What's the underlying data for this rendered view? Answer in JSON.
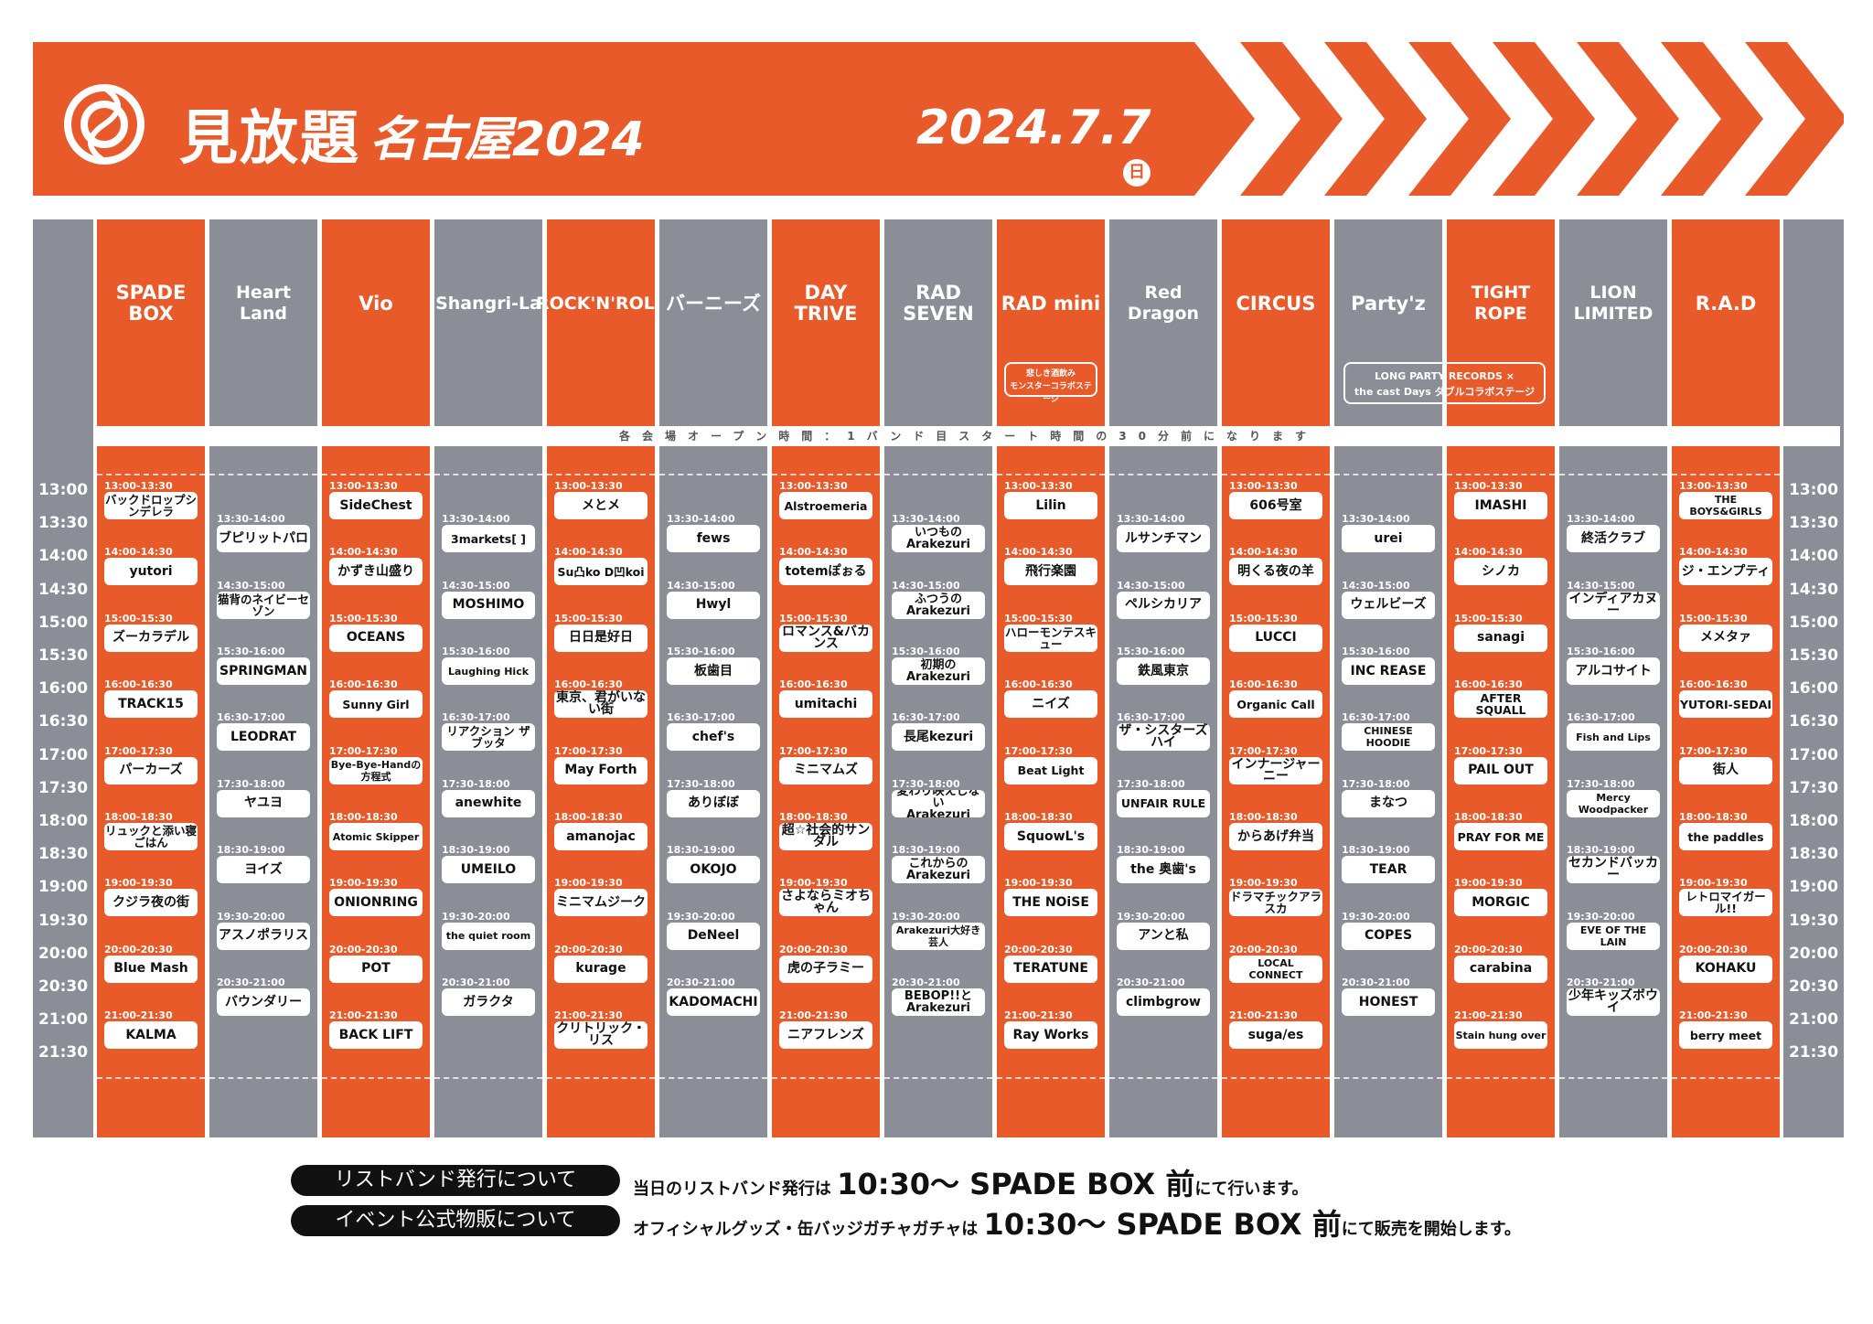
{
  "header": {
    "logo_main": "見放題",
    "logo_sub": "名古屋2024",
    "date": "2024.7.7",
    "weekday": "日"
  },
  "colors": {
    "orange": "#e85a2a",
    "gray": "#8b8d97"
  },
  "notice": "各会場オープン時間：1バンド目スタート時間の30分前になります",
  "time_labels": [
    "13:00",
    "13:30",
    "14:00",
    "14:30",
    "15:00",
    "15:30",
    "16:00",
    "16:30",
    "17:00",
    "17:30",
    "18:00",
    "18:30",
    "19:00",
    "19:30",
    "20:00",
    "20:30",
    "21:00",
    "21:30"
  ],
  "venues": [
    {
      "name": "SPADE BOX",
      "color": "orange",
      "offset": 0,
      "acts": [
        {
          "time": "13:00-13:30",
          "band": "バックドロップシンデレラ"
        },
        {
          "time": "14:00-14:30",
          "band": "yutori"
        },
        {
          "time": "15:00-15:30",
          "band": "ズーカラデル"
        },
        {
          "time": "16:00-16:30",
          "band": "TRACK15"
        },
        {
          "time": "17:00-17:30",
          "band": "パーカーズ"
        },
        {
          "time": "18:00-18:30",
          "band": "リュックと添い寝ごはん"
        },
        {
          "time": "19:00-19:30",
          "band": "クジラ夜の街"
        },
        {
          "time": "20:00-20:30",
          "band": "Blue Mash"
        },
        {
          "time": "21:00-21:30",
          "band": "KALMA"
        }
      ]
    },
    {
      "name": "Heart\nLand",
      "color": "gray",
      "offset": 1,
      "acts": [
        {
          "time": "13:30-14:00",
          "band": "ブピリットパロ"
        },
        {
          "time": "14:30-15:00",
          "band": "猫背のネイビーセゾン"
        },
        {
          "time": "15:30-16:00",
          "band": "SPRINGMAN"
        },
        {
          "time": "16:30-17:00",
          "band": "LEODRAT"
        },
        {
          "time": "17:30-18:00",
          "band": "ヤユヨ"
        },
        {
          "time": "18:30-19:00",
          "band": "ヨイズ"
        },
        {
          "time": "19:30-20:00",
          "band": "アスノポラリス"
        },
        {
          "time": "20:30-21:00",
          "band": "バウンダリー"
        }
      ]
    },
    {
      "name": "Vio",
      "color": "orange",
      "offset": 0,
      "acts": [
        {
          "time": "13:00-13:30",
          "band": "SideChest"
        },
        {
          "time": "14:00-14:30",
          "band": "かずき山盛り"
        },
        {
          "time": "15:00-15:30",
          "band": "OCEANS"
        },
        {
          "time": "16:00-16:30",
          "band": "Sunny Girl"
        },
        {
          "time": "17:00-17:30",
          "band": "Bye-Bye-Handの方程式"
        },
        {
          "time": "18:00-18:30",
          "band": "Atomic Skipper"
        },
        {
          "time": "19:00-19:30",
          "band": "ONIONRING"
        },
        {
          "time": "20:00-20:30",
          "band": "POT"
        },
        {
          "time": "21:00-21:30",
          "band": "BACK LIFT"
        }
      ]
    },
    {
      "name": "Shangri-La",
      "color": "gray",
      "offset": 1,
      "acts": [
        {
          "time": "13:30-14:00",
          "band": "3markets[ ]"
        },
        {
          "time": "14:30-15:00",
          "band": "MOSHIMO"
        },
        {
          "time": "15:30-16:00",
          "band": "Laughing Hick"
        },
        {
          "time": "16:30-17:00",
          "band": "リアクション ザ ブッタ"
        },
        {
          "time": "17:30-18:00",
          "band": "anewhite"
        },
        {
          "time": "18:30-19:00",
          "band": "UMEILO"
        },
        {
          "time": "19:30-20:00",
          "band": "the quiet room"
        },
        {
          "time": "20:30-21:00",
          "band": "ガラクタ"
        }
      ]
    },
    {
      "name": "ROCK'N'ROLL",
      "color": "orange",
      "offset": 0,
      "acts": [
        {
          "time": "13:00-13:30",
          "band": "メとメ"
        },
        {
          "time": "14:00-14:30",
          "band": "Su凸ko D凹koi"
        },
        {
          "time": "15:00-15:30",
          "band": "日日是好日"
        },
        {
          "time": "16:00-16:30",
          "band": "東京、君がいない街"
        },
        {
          "time": "17:00-17:30",
          "band": "May Forth"
        },
        {
          "time": "18:00-18:30",
          "band": "amanojac"
        },
        {
          "time": "19:00-19:30",
          "band": "ミニマムジーク"
        },
        {
          "time": "20:00-20:30",
          "band": "kurage"
        },
        {
          "time": "21:00-21:30",
          "band": "クリトリック・リス"
        }
      ]
    },
    {
      "name": "バーニーズ",
      "color": "gray",
      "offset": 1,
      "acts": [
        {
          "time": "13:30-14:00",
          "band": "fews"
        },
        {
          "time": "14:30-15:00",
          "band": "Hwyl"
        },
        {
          "time": "15:30-16:00",
          "band": "板歯目"
        },
        {
          "time": "16:30-17:00",
          "band": "chef's"
        },
        {
          "time": "17:30-18:00",
          "band": "ありぼぼ"
        },
        {
          "time": "18:30-19:00",
          "band": "OKOJO"
        },
        {
          "time": "19:30-20:00",
          "band": "DeNeel"
        },
        {
          "time": "20:30-21:00",
          "band": "KADOMACHI"
        }
      ]
    },
    {
      "name": "DAY\nTRIVE",
      "color": "orange",
      "offset": 0,
      "acts": [
        {
          "time": "13:00-13:30",
          "band": "Alstroemeria"
        },
        {
          "time": "14:00-14:30",
          "band": "totemぽぉる"
        },
        {
          "time": "15:00-15:30",
          "band": "ロマンス&バカンス"
        },
        {
          "time": "16:00-16:30",
          "band": "umitachi"
        },
        {
          "time": "17:00-17:30",
          "band": "ミニマムズ"
        },
        {
          "time": "18:00-18:30",
          "band": "超☆社会的サンダル"
        },
        {
          "time": "19:00-19:30",
          "band": "さよならミオちゃん"
        },
        {
          "time": "20:00-20:30",
          "band": "虎の子ラミー"
        },
        {
          "time": "21:00-21:30",
          "band": "ニアフレンズ"
        }
      ]
    },
    {
      "name": "RAD SEVEN",
      "color": "gray",
      "offset": 1,
      "acts": [
        {
          "time": "13:30-14:00",
          "band": "いつもの\nArakezuri"
        },
        {
          "time": "14:30-15:00",
          "band": "ふつうの\nArakezuri"
        },
        {
          "time": "15:30-16:00",
          "band": "初期の\nArakezuri"
        },
        {
          "time": "16:30-17:00",
          "band": "長尾kezuri"
        },
        {
          "time": "17:30-18:00",
          "band": "変わり映えしない\nArakezuri"
        },
        {
          "time": "18:30-19:00",
          "band": "これからの\nArakezuri"
        },
        {
          "time": "19:30-20:00",
          "band": "Arakezuri大好き芸人"
        },
        {
          "time": "20:30-21:00",
          "band": "BEBOP!!と\nArakezuri"
        }
      ]
    },
    {
      "name": "RAD mini",
      "color": "orange",
      "offset": 0,
      "note": "悲しき酒飲み\nモンスターコラボステージ",
      "acts": [
        {
          "time": "13:00-13:30",
          "band": "Lilin"
        },
        {
          "time": "14:00-14:30",
          "band": "飛行楽園"
        },
        {
          "time": "15:00-15:30",
          "band": "ハローモンテスキュー"
        },
        {
          "time": "16:00-16:30",
          "band": "ニイズ"
        },
        {
          "time": "17:00-17:30",
          "band": "Beat Light"
        },
        {
          "time": "18:00-18:30",
          "band": "SquowL's"
        },
        {
          "time": "19:00-19:30",
          "band": "THE NOiSE"
        },
        {
          "time": "20:00-20:30",
          "band": "TERATUNE"
        },
        {
          "time": "21:00-21:30",
          "band": "Ray Works"
        }
      ]
    },
    {
      "name": "Red\nDragon",
      "color": "gray",
      "offset": 1,
      "acts": [
        {
          "time": "13:30-14:00",
          "band": "ルサンチマン"
        },
        {
          "time": "14:30-15:00",
          "band": "ペルシカリア"
        },
        {
          "time": "15:30-16:00",
          "band": "鉄風東京"
        },
        {
          "time": "16:30-17:00",
          "band": "ザ・シスターズハイ"
        },
        {
          "time": "17:30-18:00",
          "band": "UNFAIR RULE"
        },
        {
          "time": "18:30-19:00",
          "band": "the 奥歯's"
        },
        {
          "time": "19:30-20:00",
          "band": "アンと私"
        },
        {
          "time": "20:30-21:00",
          "band": "climbgrow"
        }
      ]
    },
    {
      "name": "CIRCUS",
      "color": "orange",
      "offset": 0,
      "acts": [
        {
          "time": "13:00-13:30",
          "band": "606号室"
        },
        {
          "time": "14:00-14:30",
          "band": "明くる夜の羊"
        },
        {
          "time": "15:00-15:30",
          "band": "LUCCI"
        },
        {
          "time": "16:00-16:30",
          "band": "Organic Call"
        },
        {
          "time": "17:00-17:30",
          "band": "インナージャーニー"
        },
        {
          "time": "18:00-18:30",
          "band": "からあげ弁当"
        },
        {
          "time": "19:00-19:30",
          "band": "ドラマチックアラスカ"
        },
        {
          "time": "20:00-20:30",
          "band": "LOCAL CONNECT"
        },
        {
          "time": "21:00-21:30",
          "band": "suga/es"
        }
      ]
    },
    {
      "name": "Party'z",
      "color": "gray",
      "offset": 1,
      "acts": [
        {
          "time": "13:30-14:00",
          "band": "urei"
        },
        {
          "time": "14:30-15:00",
          "band": "ウェルビーズ"
        },
        {
          "time": "15:30-16:00",
          "band": "INC REASE"
        },
        {
          "time": "16:30-17:00",
          "band": "CHINESE HOODIE"
        },
        {
          "time": "17:30-18:00",
          "band": "まなつ"
        },
        {
          "time": "18:30-19:00",
          "band": "TEAR"
        },
        {
          "time": "19:30-20:00",
          "band": "COPES"
        },
        {
          "time": "20:30-21:00",
          "band": "HONEST"
        }
      ]
    },
    {
      "name": "TIGHT\nROPE",
      "color": "orange",
      "offset": 0,
      "acts": [
        {
          "time": "13:00-13:30",
          "band": "IMASHI"
        },
        {
          "time": "14:00-14:30",
          "band": "シノカ"
        },
        {
          "time": "15:00-15:30",
          "band": "sanagi"
        },
        {
          "time": "16:00-16:30",
          "band": "AFTER SQUALL"
        },
        {
          "time": "17:00-17:30",
          "band": "PAIL OUT"
        },
        {
          "time": "18:00-18:30",
          "band": "PRAY FOR ME"
        },
        {
          "time": "19:00-19:30",
          "band": "MORGIC"
        },
        {
          "time": "20:00-20:30",
          "band": "carabina"
        },
        {
          "time": "21:00-21:30",
          "band": "Stain hung over"
        }
      ]
    },
    {
      "name": "LION\nLIMITED",
      "color": "gray",
      "offset": 1,
      "acts": [
        {
          "time": "13:30-14:00",
          "band": "終活クラブ"
        },
        {
          "time": "14:30-15:00",
          "band": "インディアカヌー"
        },
        {
          "time": "15:30-16:00",
          "band": "アルコサイト"
        },
        {
          "time": "16:30-17:00",
          "band": "Fish and Lips"
        },
        {
          "time": "17:30-18:00",
          "band": "Mercy Woodpacker"
        },
        {
          "time": "18:30-19:00",
          "band": "セカンドバッカー"
        },
        {
          "time": "19:30-20:00",
          "band": "EVE OF THE LAIN"
        },
        {
          "time": "20:30-21:00",
          "band": "少年キッズボウイ"
        }
      ]
    },
    {
      "name": "R.A.D",
      "color": "orange",
      "offset": 0,
      "acts": [
        {
          "time": "13:00-13:30",
          "band": "THE BOYS&GIRLS"
        },
        {
          "time": "14:00-14:30",
          "band": "ジ・エンプティ"
        },
        {
          "time": "15:00-15:30",
          "band": "メメタァ"
        },
        {
          "time": "16:00-16:30",
          "band": "YUTORI-SEDAI"
        },
        {
          "time": "17:00-17:30",
          "band": "街人"
        },
        {
          "time": "18:00-18:30",
          "band": "the paddles"
        },
        {
          "time": "19:00-19:30",
          "band": "レトロマイガール!!"
        },
        {
          "time": "20:00-20:30",
          "band": "KOHAKU"
        },
        {
          "time": "21:00-21:30",
          "band": "berry meet"
        }
      ]
    }
  ],
  "collab_note": "LONG PARTY RECORDS ×\nthe cast Days ダブルコラボステージ",
  "info": [
    {
      "label": "リストバンド発行について",
      "text_pre": "当日のリストバンド発行は ",
      "text_big": "10:30〜 SPADE BOX 前",
      "text_post": "にて行います。"
    },
    {
      "label": "イベント公式物販について",
      "text_pre": "オフィシャルグッズ・缶バッジガチャガチャは ",
      "text_big": "10:30〜 SPADE BOX 前",
      "text_post": "にて販売を開始します。"
    }
  ]
}
